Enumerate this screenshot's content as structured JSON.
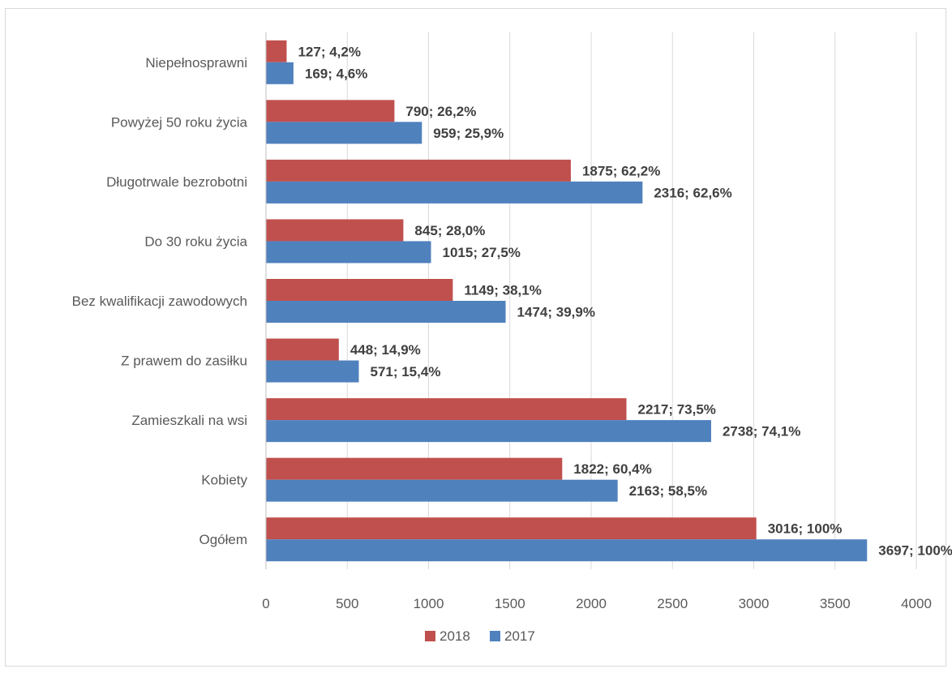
{
  "chart_data": {
    "type": "bar",
    "orientation": "horizontal",
    "categories": [
      "Niepełnosprawni",
      "Powyżej 50 roku życia",
      "Długotrwale bezrobotni",
      "Do 30 roku życia",
      "Bez kwalifikacji zawodowych",
      "Z prawem do zasiłku",
      "Zamieszkali na wsi",
      "Kobiety",
      "Ogółem"
    ],
    "series": [
      {
        "name": "2018",
        "color": "#c0504d",
        "values": [
          127,
          790,
          1875,
          845,
          1149,
          448,
          2217,
          1822,
          3016
        ],
        "labels": [
          "127;  4,2%",
          "790;  26,2%",
          "1875;  62,2%",
          "845;  28,0%",
          "1149;  38,1%",
          "448;  14,9%",
          "2217;  73,5%",
          "1822;  60,4%",
          "3016;  100%"
        ]
      },
      {
        "name": "2017",
        "color": "#4f81bd",
        "values": [
          169,
          959,
          2316,
          1015,
          1474,
          571,
          2738,
          2163,
          3697
        ],
        "labels": [
          "169;  4,6%",
          "959;  25,9%",
          "2316;  62,6%",
          "1015;  27,5%",
          "1474;  39,9%",
          "571;  15,4%",
          "2738;  74,1%",
          "2163;  58,5%",
          "3697;  100%"
        ]
      }
    ],
    "xlim": [
      0,
      4000
    ],
    "xticks": [
      "0",
      "500",
      "1000",
      "1500",
      "2000",
      "2500",
      "3000",
      "3500",
      "4000"
    ],
    "grid": true,
    "legend": "bottom",
    "title": "",
    "xlabel": "",
    "ylabel": ""
  }
}
